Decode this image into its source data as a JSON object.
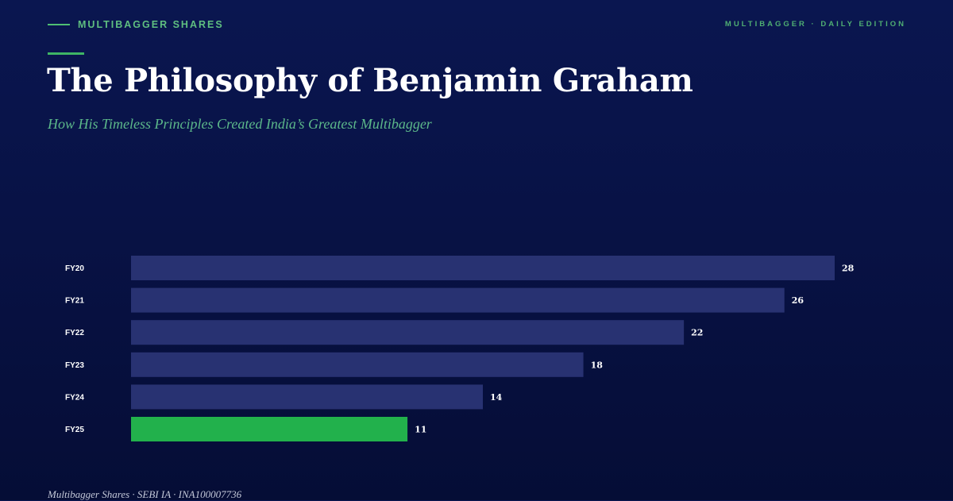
{
  "header": {
    "brand": "MULTIBAGGER SHARES",
    "edition": "MULTIBAGGER · DAILY EDITION"
  },
  "title": "The Philosophy of Benjamin Graham",
  "subtitle": "How His Timeless Principles Created India’s Greatest Multibagger",
  "footer": "Multibagger Shares · SEBI IA · INA100007736",
  "colors": {
    "bar": "#283272",
    "highlight_bar": "#22b14c",
    "accent": "#4fbf73"
  },
  "chart_data": {
    "type": "bar",
    "orientation": "horizontal",
    "categories": [
      "FY20",
      "FY21",
      "FY22",
      "FY23",
      "FY24",
      "FY25"
    ],
    "values": [
      28,
      26,
      22,
      18,
      14,
      11
    ],
    "highlight_index": 5,
    "xlim": [
      0,
      28
    ],
    "grid": false,
    "legend": "none"
  }
}
